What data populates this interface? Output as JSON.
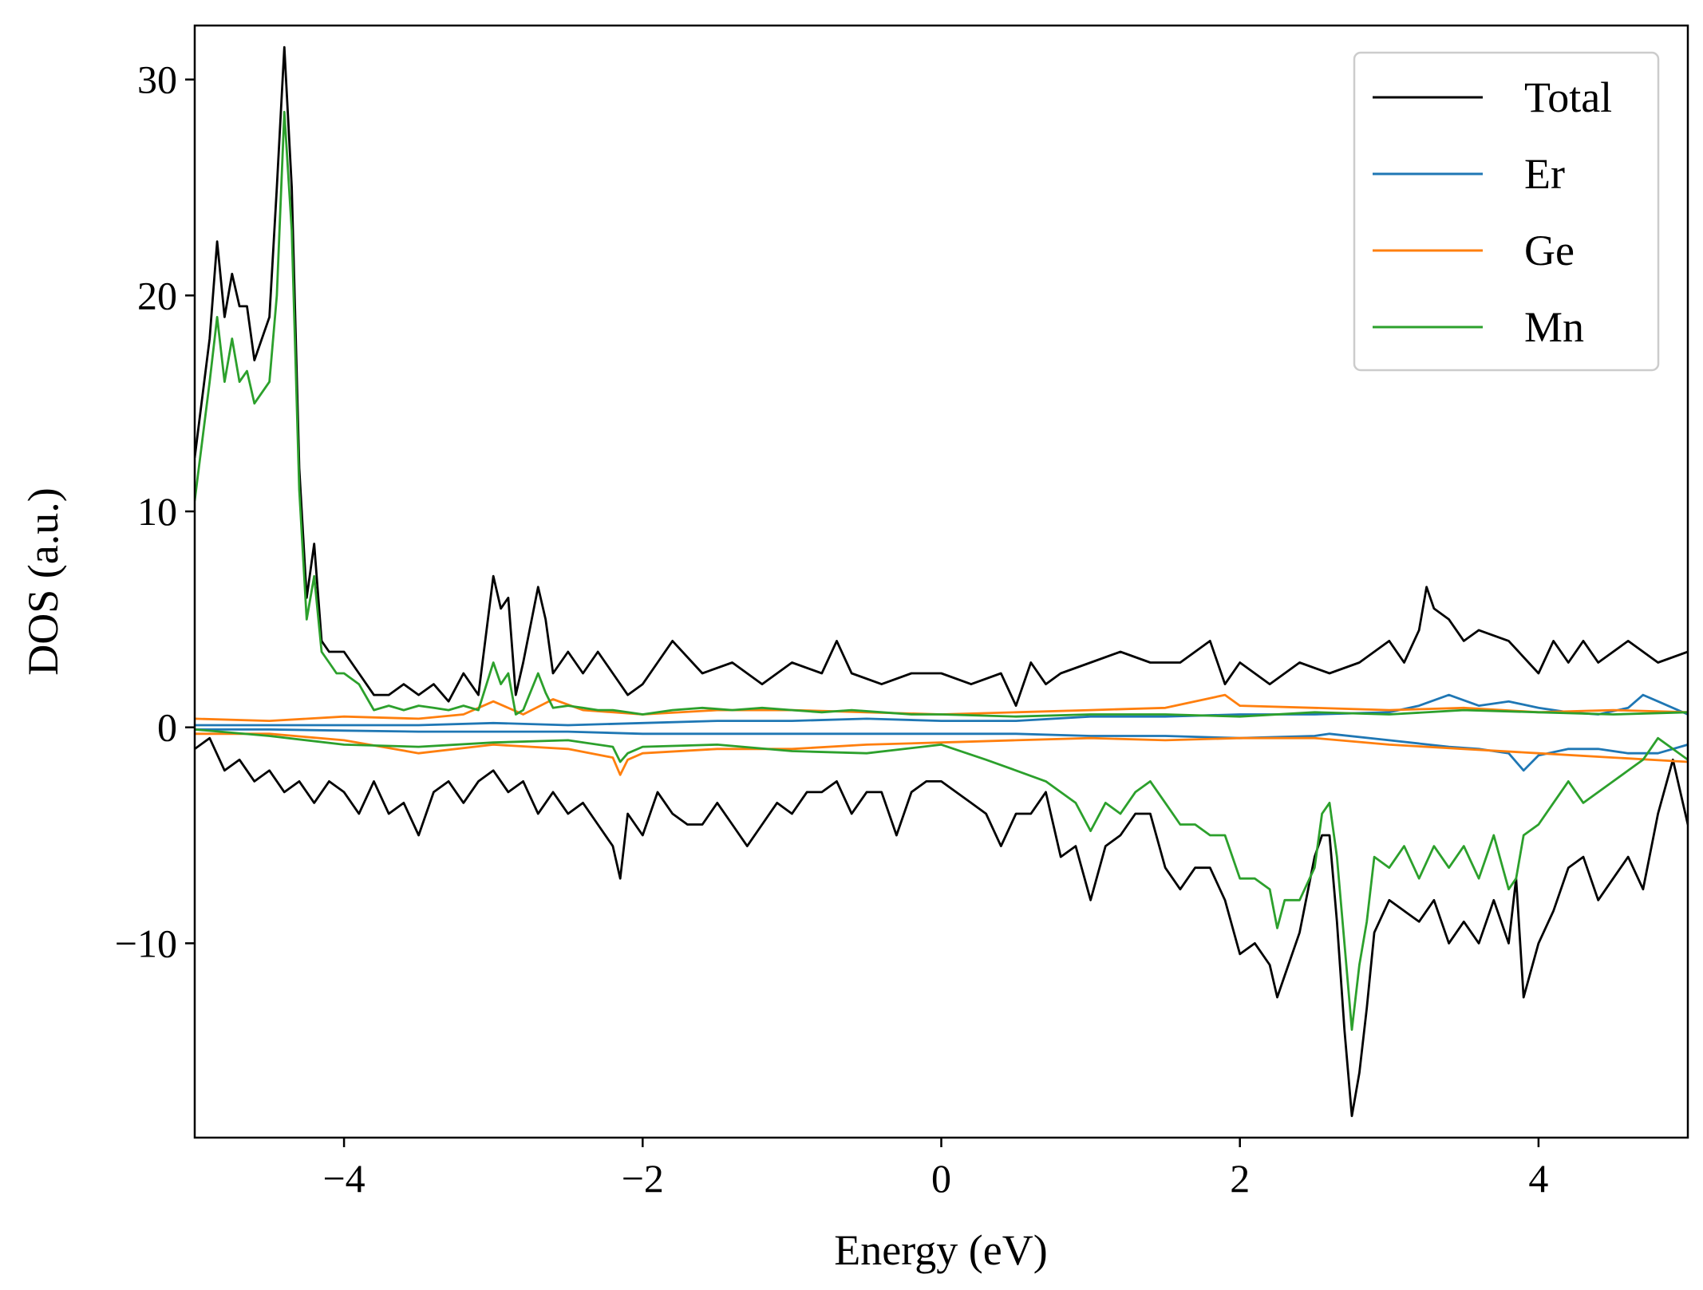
{
  "chart_data": {
    "type": "line",
    "title": "",
    "xlabel": "Energy (eV)",
    "ylabel": "DOS (a.u.)",
    "xlim": [
      -5,
      5
    ],
    "ylim": [
      -19,
      32.5
    ],
    "grid": false,
    "legend_position": "top-right",
    "x_ticks": [
      -4,
      -2,
      0,
      2,
      4
    ],
    "x_tick_labels": [
      "−4",
      "−2",
      "0",
      "2",
      "4"
    ],
    "y_ticks": [
      -10,
      0,
      10,
      20,
      30
    ],
    "y_tick_labels": [
      "−10",
      "0",
      "10",
      "20",
      "30"
    ],
    "series": [
      {
        "name": "Total",
        "color": "#000000",
        "segments": [
          {
            "x": [
              -5.0,
              -4.9,
              -4.85,
              -4.8,
              -4.75,
              -4.7,
              -4.65,
              -4.6,
              -4.5,
              -4.45,
              -4.4,
              -4.35,
              -4.3,
              -4.25,
              -4.2,
              -4.15,
              -4.1,
              -4.05,
              -4.0,
              -3.9,
              -3.8,
              -3.7,
              -3.6,
              -3.5,
              -3.4,
              -3.3,
              -3.2,
              -3.1,
              -3.0,
              -2.95,
              -2.9,
              -2.85,
              -2.8,
              -2.7,
              -2.65,
              -2.6,
              -2.5,
              -2.4,
              -2.3,
              -2.2,
              -2.1,
              -2.0,
              -1.9,
              -1.8,
              -1.6,
              -1.4,
              -1.2,
              -1.0,
              -0.8,
              -0.7,
              -0.6,
              -0.4,
              -0.2,
              0.0,
              0.2,
              0.4,
              0.5,
              0.6,
              0.7,
              0.8,
              1.0,
              1.2,
              1.4,
              1.6,
              1.8,
              1.9,
              2.0,
              2.2,
              2.4,
              2.6,
              2.8,
              3.0,
              3.1,
              3.2,
              3.25,
              3.3,
              3.4,
              3.5,
              3.6,
              3.8,
              4.0,
              4.1,
              4.2,
              4.3,
              4.4,
              4.6,
              4.8,
              5.0
            ],
            "y": [
              12.5,
              18,
              22.5,
              19,
              21,
              19.5,
              19.5,
              17,
              19,
              25,
              31.5,
              25,
              12,
              6,
              8.5,
              4,
              3.5,
              3.5,
              3.5,
              2.5,
              1.5,
              1.5,
              2,
              1.5,
              2,
              1.2,
              2.5,
              1.5,
              7,
              5.5,
              6,
              1.5,
              3,
              6.5,
              5,
              2.5,
              3.5,
              2.5,
              3.5,
              2.5,
              1.5,
              2,
              3,
              4,
              2.5,
              3,
              2,
              3,
              2.5,
              4,
              2.5,
              2,
              2.5,
              2.5,
              2,
              2.5,
              1,
              3,
              2,
              2.5,
              3,
              3.5,
              3,
              3,
              4,
              2,
              3,
              2,
              3,
              2.5,
              3,
              4,
              3,
              4.5,
              6.5,
              5.5,
              5,
              4,
              4.5,
              4,
              2.5,
              4,
              3,
              4,
              3,
              4,
              3,
              3.5
            ]
          },
          {
            "x": [
              -5.0,
              -4.9,
              -4.8,
              -4.7,
              -4.6,
              -4.5,
              -4.4,
              -4.3,
              -4.2,
              -4.1,
              -4.0,
              -3.9,
              -3.8,
              -3.7,
              -3.6,
              -3.5,
              -3.4,
              -3.3,
              -3.2,
              -3.1,
              -3.0,
              -2.9,
              -2.8,
              -2.7,
              -2.6,
              -2.5,
              -2.4,
              -2.3,
              -2.2,
              -2.15,
              -2.1,
              -2.0,
              -1.9,
              -1.8,
              -1.7,
              -1.6,
              -1.5,
              -1.4,
              -1.3,
              -1.2,
              -1.1,
              -1.0,
              -0.9,
              -0.8,
              -0.7,
              -0.6,
              -0.5,
              -0.4,
              -0.3,
              -0.2,
              -0.1,
              0.0,
              0.1,
              0.2,
              0.3,
              0.4,
              0.5,
              0.6,
              0.7,
              0.8,
              0.9,
              1.0,
              1.1,
              1.2,
              1.3,
              1.4,
              1.5,
              1.6,
              1.7,
              1.8,
              1.9,
              2.0,
              2.1,
              2.2,
              2.25,
              2.3,
              2.4,
              2.5,
              2.55,
              2.6,
              2.65,
              2.7,
              2.75,
              2.8,
              2.85,
              2.9,
              3.0,
              3.1,
              3.2,
              3.3,
              3.4,
              3.5,
              3.6,
              3.7,
              3.8,
              3.85,
              3.9,
              4.0,
              4.1,
              4.2,
              4.3,
              4.4,
              4.5,
              4.6,
              4.7,
              4.8,
              4.9,
              5.0
            ],
            "y": [
              -1,
              -0.5,
              -2,
              -1.5,
              -2.5,
              -2,
              -3,
              -2.5,
              -3.5,
              -2.5,
              -3,
              -4,
              -2.5,
              -4,
              -3.5,
              -5,
              -3,
              -2.5,
              -3.5,
              -2.5,
              -2,
              -3,
              -2.5,
              -4,
              -3,
              -4,
              -3.5,
              -4.5,
              -5.5,
              -7,
              -4,
              -5,
              -3,
              -4,
              -4.5,
              -4.5,
              -3.5,
              -4.5,
              -5.5,
              -4.5,
              -3.5,
              -4,
              -3,
              -3,
              -2.5,
              -4,
              -3,
              -3,
              -5,
              -3,
              -2.5,
              -2.5,
              -3,
              -3.5,
              -4,
              -5.5,
              -4,
              -4,
              -3,
              -6,
              -5.5,
              -8,
              -5.5,
              -5,
              -4,
              -4,
              -6.5,
              -7.5,
              -6.5,
              -6.5,
              -8,
              -10.5,
              -10,
              -11,
              -12.5,
              -11.5,
              -9.5,
              -6,
              -5,
              -5,
              -9,
              -14,
              -18,
              -16,
              -13,
              -9.5,
              -8,
              -8.5,
              -9,
              -8,
              -10,
              -9,
              -10,
              -8,
              -10,
              -7,
              -12.5,
              -10,
              -8.5,
              -6.5,
              -6,
              -8,
              -7,
              -6,
              -7.5,
              -4,
              -1.5,
              -4.5
            ]
          }
        ]
      },
      {
        "name": "Er",
        "color": "#1f77b4",
        "segments": [
          {
            "x": [
              -5.0,
              -4.5,
              -4.0,
              -3.5,
              -3.0,
              -2.5,
              -2.0,
              -1.5,
              -1.0,
              -0.5,
              0.0,
              0.5,
              1.0,
              1.5,
              2.0,
              2.5,
              3.0,
              3.2,
              3.4,
              3.6,
              3.8,
              4.0,
              4.2,
              4.4,
              4.6,
              4.7,
              4.8,
              5.0
            ],
            "y": [
              0.1,
              0.1,
              0.1,
              0.1,
              0.2,
              0.1,
              0.2,
              0.3,
              0.3,
              0.4,
              0.3,
              0.3,
              0.5,
              0.5,
              0.6,
              0.6,
              0.7,
              1.0,
              1.5,
              1.0,
              1.2,
              0.9,
              0.7,
              0.6,
              0.9,
              1.5,
              1.2,
              0.6
            ]
          },
          {
            "x": [
              -5.0,
              -4.5,
              -4.0,
              -3.5,
              -3.0,
              -2.5,
              -2.0,
              -1.5,
              -1.0,
              -0.5,
              0.0,
              0.5,
              1.0,
              1.5,
              2.0,
              2.5,
              2.6,
              3.0,
              3.4,
              3.6,
              3.8,
              3.9,
              4.0,
              4.2,
              4.4,
              4.6,
              4.8,
              5.0
            ],
            "y": [
              -0.1,
              -0.1,
              -0.15,
              -0.2,
              -0.2,
              -0.2,
              -0.3,
              -0.3,
              -0.3,
              -0.3,
              -0.3,
              -0.3,
              -0.4,
              -0.4,
              -0.5,
              -0.4,
              -0.3,
              -0.6,
              -0.9,
              -1.0,
              -1.2,
              -2.0,
              -1.3,
              -1.0,
              -1.0,
              -1.2,
              -1.2,
              -0.8
            ]
          }
        ]
      },
      {
        "name": "Ge",
        "color": "#ff7f0e",
        "segments": [
          {
            "x": [
              -5.0,
              -4.5,
              -4.0,
              -3.5,
              -3.2,
              -3.0,
              -2.8,
              -2.6,
              -2.4,
              -2.0,
              -1.5,
              -1.0,
              -0.5,
              0.0,
              0.5,
              1.0,
              1.5,
              1.9,
              2.0,
              2.5,
              3.0,
              3.5,
              4.0,
              4.5,
              5.0
            ],
            "y": [
              0.4,
              0.3,
              0.5,
              0.4,
              0.6,
              1.2,
              0.6,
              1.3,
              0.8,
              0.6,
              0.8,
              0.8,
              0.7,
              0.6,
              0.7,
              0.8,
              0.9,
              1.5,
              1.0,
              0.9,
              0.8,
              0.9,
              0.7,
              0.8,
              0.7
            ]
          },
          {
            "x": [
              -5.0,
              -4.5,
              -4.0,
              -3.5,
              -3.0,
              -2.5,
              -2.2,
              -2.15,
              -2.1,
              -2.0,
              -1.5,
              -1.0,
              -0.5,
              0.0,
              0.5,
              1.0,
              1.5,
              2.0,
              2.5,
              3.0,
              3.5,
              4.0,
              4.5,
              5.0
            ],
            "y": [
              -0.3,
              -0.3,
              -0.6,
              -1.2,
              -0.8,
              -1.0,
              -1.4,
              -2.2,
              -1.5,
              -1.2,
              -1.0,
              -1.0,
              -0.8,
              -0.7,
              -0.6,
              -0.5,
              -0.6,
              -0.5,
              -0.5,
              -0.8,
              -1.0,
              -1.2,
              -1.4,
              -1.6
            ]
          }
        ]
      },
      {
        "name": "Mn",
        "color": "#2ca02c",
        "segments": [
          {
            "x": [
              -5.0,
              -4.9,
              -4.85,
              -4.8,
              -4.75,
              -4.7,
              -4.65,
              -4.6,
              -4.5,
              -4.45,
              -4.4,
              -4.35,
              -4.3,
              -4.25,
              -4.2,
              -4.15,
              -4.1,
              -4.05,
              -4.0,
              -3.9,
              -3.8,
              -3.7,
              -3.6,
              -3.5,
              -3.4,
              -3.3,
              -3.2,
              -3.1,
              -3.0,
              -2.95,
              -2.9,
              -2.85,
              -2.8,
              -2.7,
              -2.65,
              -2.6,
              -2.5,
              -2.4,
              -2.3,
              -2.2,
              -2.1,
              -2.0,
              -1.8,
              -1.6,
              -1.4,
              -1.2,
              -1.0,
              -0.8,
              -0.6,
              -0.4,
              -0.2,
              0.0,
              0.5,
              1.0,
              1.5,
              2.0,
              2.5,
              3.0,
              3.5,
              4.0,
              4.5,
              5.0
            ],
            "y": [
              10.5,
              16,
              19,
              16,
              18,
              16,
              16.5,
              15,
              16,
              20,
              28.5,
              23,
              11,
              5,
              7,
              3.5,
              3,
              2.5,
              2.5,
              2,
              0.8,
              1,
              0.8,
              1,
              0.9,
              0.8,
              1,
              0.8,
              3,
              2,
              2.5,
              0.6,
              0.8,
              2.5,
              1.6,
              0.9,
              1.0,
              0.9,
              0.8,
              0.8,
              0.7,
              0.6,
              0.8,
              0.9,
              0.8,
              0.9,
              0.8,
              0.7,
              0.8,
              0.7,
              0.6,
              0.6,
              0.5,
              0.6,
              0.6,
              0.5,
              0.7,
              0.6,
              0.8,
              0.7,
              0.6,
              0.7
            ]
          },
          {
            "x": [
              -5.0,
              -4.5,
              -4.0,
              -3.5,
              -3.0,
              -2.5,
              -2.2,
              -2.15,
              -2.1,
              -2.0,
              -1.5,
              -1.0,
              -0.5,
              0.0,
              0.3,
              0.5,
              0.7,
              0.8,
              0.9,
              1.0,
              1.1,
              1.2,
              1.3,
              1.4,
              1.5,
              1.6,
              1.7,
              1.8,
              1.9,
              2.0,
              2.1,
              2.2,
              2.25,
              2.3,
              2.4,
              2.5,
              2.55,
              2.6,
              2.65,
              2.7,
              2.75,
              2.8,
              2.85,
              2.9,
              3.0,
              3.1,
              3.2,
              3.3,
              3.4,
              3.5,
              3.6,
              3.7,
              3.8,
              3.85,
              3.9,
              4.0,
              4.1,
              4.2,
              4.3,
              4.4,
              4.5,
              4.6,
              4.7,
              4.8,
              4.9,
              5.0
            ],
            "y": [
              -0.1,
              -0.4,
              -0.8,
              -0.9,
              -0.7,
              -0.6,
              -0.9,
              -1.6,
              -1.2,
              -0.9,
              -0.8,
              -1.1,
              -1.2,
              -0.8,
              -1.5,
              -2.0,
              -2.5,
              -3.0,
              -3.5,
              -4.8,
              -3.5,
              -4.0,
              -3.0,
              -2.5,
              -3.5,
              -4.5,
              -4.5,
              -5.0,
              -5.0,
              -7.0,
              -7.0,
              -7.5,
              -9.3,
              -8.0,
              -8.0,
              -6.5,
              -4.0,
              -3.5,
              -6.0,
              -10.0,
              -14.0,
              -11.0,
              -9.0,
              -6.0,
              -6.5,
              -5.5,
              -7.0,
              -5.5,
              -6.5,
              -5.5,
              -7.0,
              -5.0,
              -7.5,
              -7.0,
              -5.0,
              -4.5,
              -3.5,
              -2.5,
              -3.5,
              -3.0,
              -2.5,
              -2.0,
              -1.5,
              -0.5,
              -1.0,
              -1.5
            ]
          }
        ]
      }
    ]
  }
}
